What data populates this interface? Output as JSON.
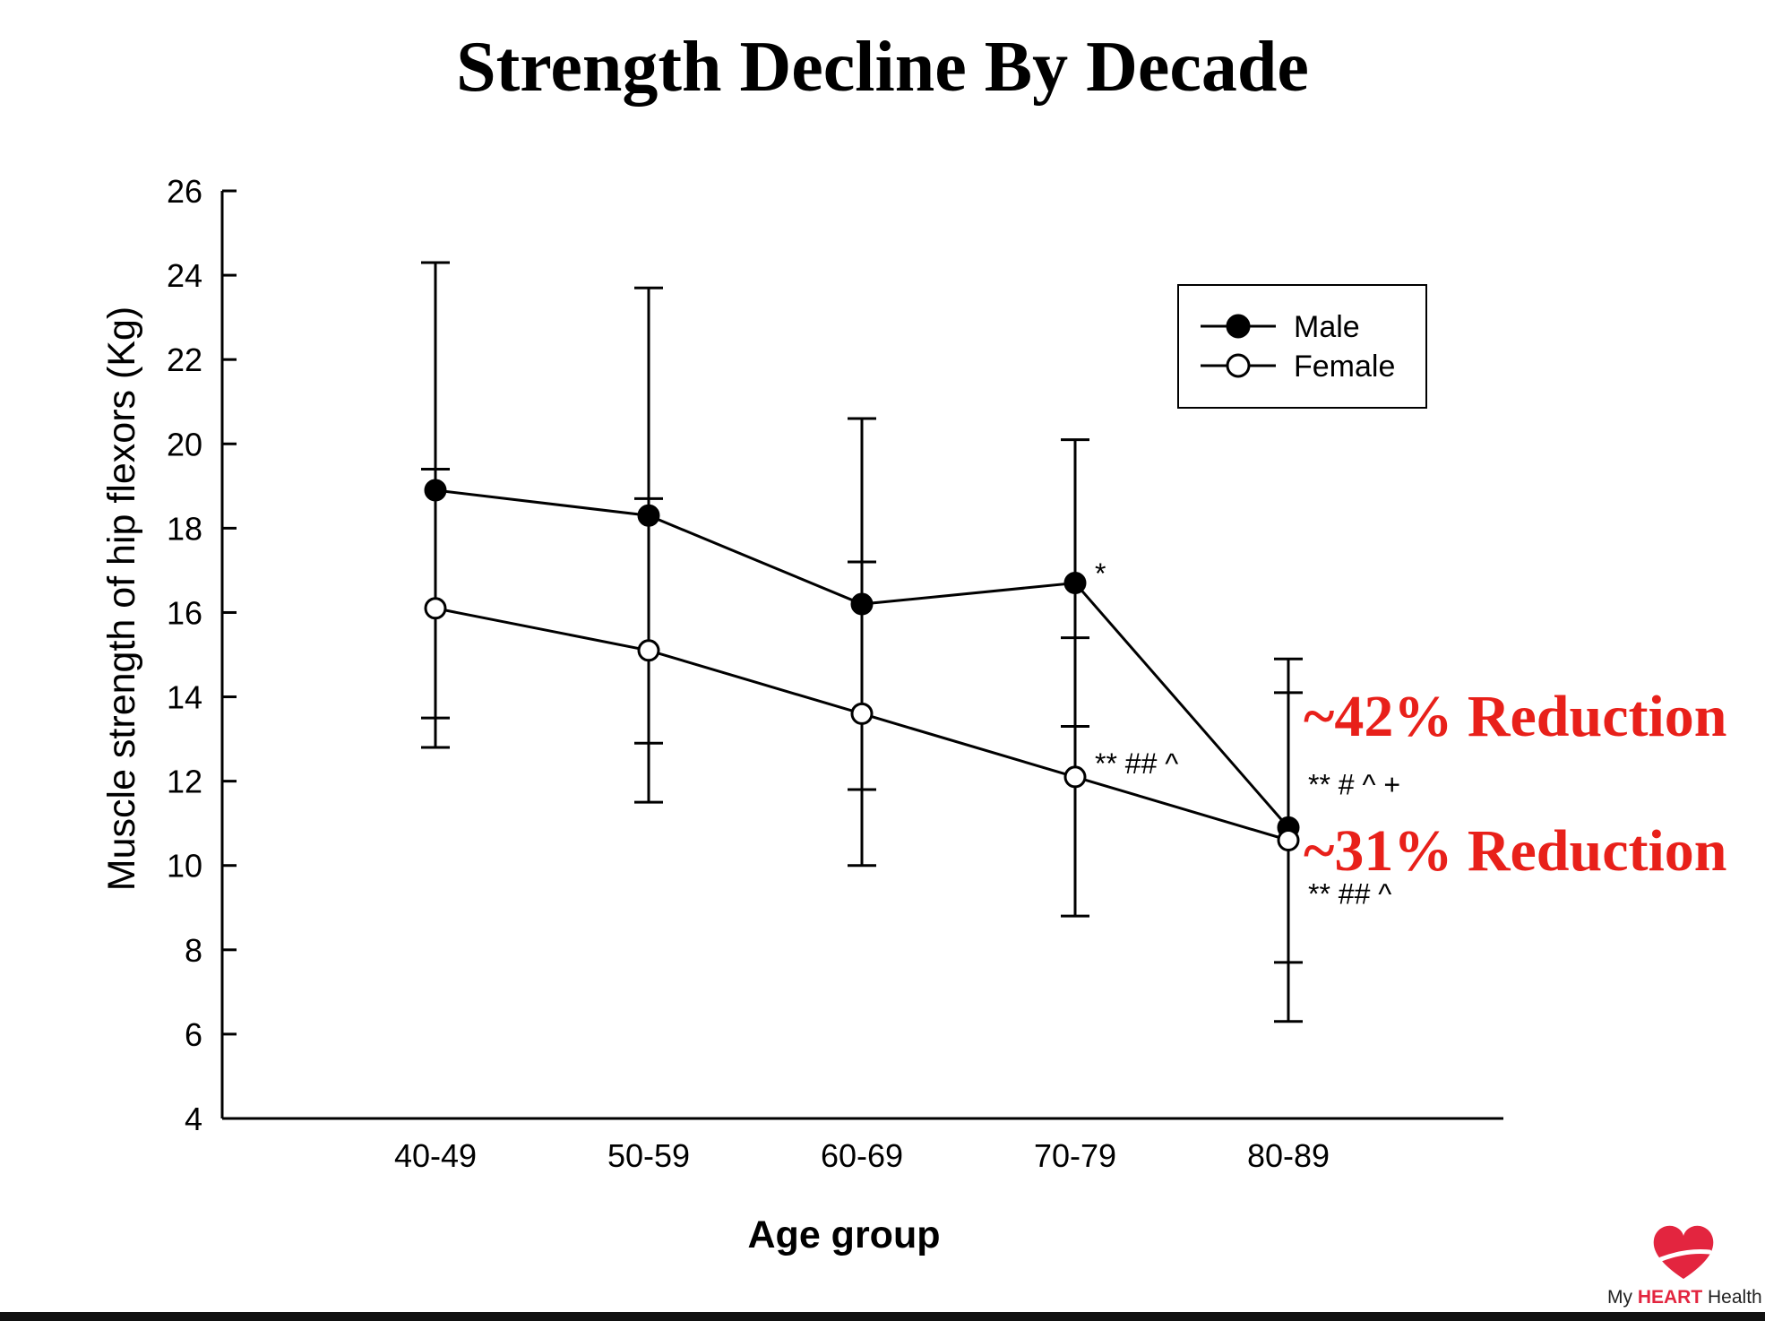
{
  "chart_data": {
    "type": "line",
    "title": "Strength Decline By Decade",
    "xlabel": "Age group",
    "ylabel": "Muscle strength of hip flexors (Kg)",
    "categories": [
      "40-49",
      "50-59",
      "60-69",
      "70-79",
      "80-89"
    ],
    "ylim": [
      4,
      26
    ],
    "yticks": [
      4,
      6,
      8,
      10,
      12,
      14,
      16,
      18,
      20,
      22,
      24,
      26
    ],
    "grid": false,
    "legend": "top-right",
    "series": [
      {
        "name": "Male",
        "marker": "filled-circle",
        "values": [
          18.9,
          18.3,
          16.2,
          16.7,
          10.9
        ],
        "error_upper": [
          24.3,
          23.7,
          20.6,
          20.1,
          14.9
        ],
        "error_lower": [
          13.5,
          12.9,
          11.8,
          13.3,
          7.7
        ]
      },
      {
        "name": "Female",
        "marker": "open-circle",
        "values": [
          16.1,
          15.1,
          13.6,
          12.1,
          10.6
        ],
        "error_upper": [
          19.4,
          18.7,
          17.2,
          15.4,
          14.1
        ],
        "error_lower": [
          12.8,
          11.5,
          10.0,
          8.8,
          6.3
        ]
      }
    ],
    "annotations": [
      {
        "text": "*",
        "x": "70-79",
        "y": 16.9
      },
      {
        "text": "** ## ^",
        "x": "70-79",
        "y": 12.4
      },
      {
        "text": "** # ^ +",
        "x": "80-89",
        "y": 11.9
      },
      {
        "text": "** ## ^",
        "x": "80-89",
        "y": 9.3
      }
    ],
    "callouts": [
      "~42% Reduction",
      "~31% Reduction"
    ]
  },
  "colors": {
    "callout": "#e8201a",
    "ink": "#000000",
    "logo": "#e3253f"
  },
  "logo": {
    "icon": "heart-icon",
    "prefix": "My ",
    "brand": "HEART",
    "suffix": " Health"
  }
}
